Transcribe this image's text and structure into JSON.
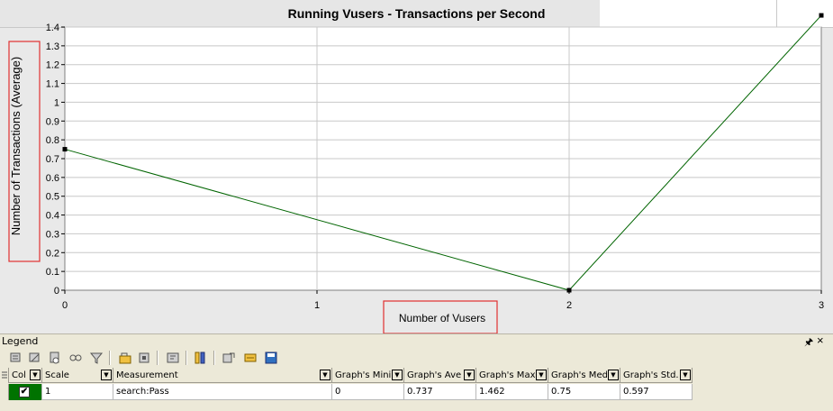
{
  "chart_data": {
    "type": "line",
    "title": "Running Vusers - Transactions per Second",
    "xlabel": "Number of Vusers",
    "ylabel": "Number of Transactions (Average)",
    "x_ticks": [
      "0",
      "1",
      "2",
      "3"
    ],
    "y_ticks": [
      "0",
      "0.1",
      "0.2",
      "0.3",
      "0.4",
      "0.5",
      "0.6",
      "0.7",
      "0.8",
      "0.9",
      "1",
      "1.1",
      "1.2",
      "1.3",
      "1.4"
    ],
    "xlim": [
      0,
      3
    ],
    "ylim": [
      0,
      1.4
    ],
    "grid": true,
    "series": [
      {
        "name": "search:Pass",
        "color": "#006400",
        "x": [
          0,
          2,
          3
        ],
        "y": [
          0.75,
          0,
          1.462
        ]
      }
    ]
  },
  "legend_panel": {
    "title": "Legend",
    "pin_icon": "pin-icon",
    "close_icon": "close-icon"
  },
  "toolbar": {
    "buttons": [
      "show-selected-icon",
      "hide-selected-icon",
      "show-all-icon",
      "hide-all-icon",
      "filter-icon",
      "configure-icon",
      "color-icon",
      "description-icon",
      "columns-icon",
      "export-icon",
      "legend-settings-icon",
      "save-icon"
    ]
  },
  "grid": {
    "columns": [
      "Col",
      "Scale",
      "Measurement",
      "Graph's Mini",
      "Graph's Ave",
      "Graph's Max",
      "Graph's Med",
      "Graph's Std."
    ],
    "rows": [
      {
        "checked": true,
        "color": "#007300",
        "scale": "1",
        "measurement": "search:Pass",
        "min": "0",
        "avg": "0.737",
        "max": "1.462",
        "median": "0.75",
        "std": "0.597"
      }
    ]
  },
  "annotations": {
    "highlight_color": "#e03030"
  }
}
